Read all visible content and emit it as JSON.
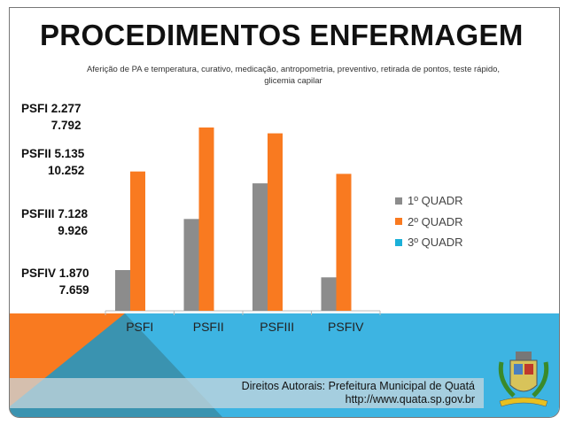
{
  "title": "PROCEDIMENTOS ENFERMAGEM",
  "side_labels": [
    {
      "line1": "PSFI 2.277",
      "line2": "7.792"
    },
    {
      "line1": "PSFII 5.135",
      "line2": "10.252"
    },
    {
      "line1": "PSFIII 7.128",
      "line2": "9.926"
    },
    {
      "line1": "PSFIV 1.870",
      "line2": "7.659"
    }
  ],
  "credits": {
    "line1": "Direitos Autorais: Prefeitura Municipal de Quatá",
    "line2": "http://www.quata.sp.gov.br"
  },
  "colors": {
    "gray": "#8c8c8c",
    "orange": "#f97a20",
    "cyan": "#1bb0d8",
    "band": "#3db4e2"
  },
  "chart_data": {
    "type": "bar",
    "title": "Aferição de PA e temperatura, curativo, medicação, antropometria, preventivo, retirada de pontos, teste rápido, glicemia capilar",
    "categories": [
      "PSFI",
      "PSFII",
      "PSFIII",
      "PSFIV"
    ],
    "series": [
      {
        "name": "1º QUADR",
        "color": "#8c8c8c",
        "values": [
          2277,
          5135,
          7128,
          1870
        ]
      },
      {
        "name": "2º QUADR",
        "color": "#f97a20",
        "values": [
          7792,
          10252,
          9926,
          7659
        ]
      },
      {
        "name": "3º QUADR",
        "color": "#1bb0d8",
        "values": [
          null,
          null,
          null,
          null
        ]
      }
    ],
    "xlabel": "",
    "ylabel": "",
    "ylim": [
      0,
      10252
    ],
    "grid": false,
    "legend": "right"
  }
}
